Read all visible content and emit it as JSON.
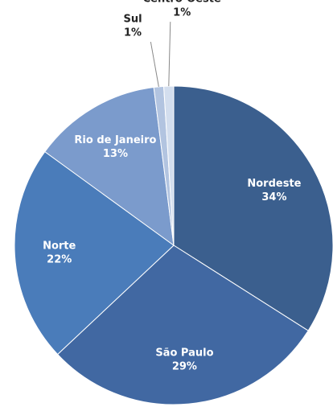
{
  "chart_data": {
    "type": "pie",
    "categories": [
      "Nordeste",
      "São Paulo",
      "Norte",
      "Rio de Janeiro",
      "Sul",
      "Centro-Oeste"
    ],
    "values": [
      34,
      29,
      22,
      13,
      1,
      1
    ],
    "value_labels": [
      "34%",
      "29%",
      "22%",
      "13%",
      "1%",
      "1%"
    ],
    "colors": [
      "#3b5f8e",
      "#4168a2",
      "#4a7cba",
      "#7b9bcc",
      "#b2c4e0",
      "#d3deee"
    ]
  }
}
